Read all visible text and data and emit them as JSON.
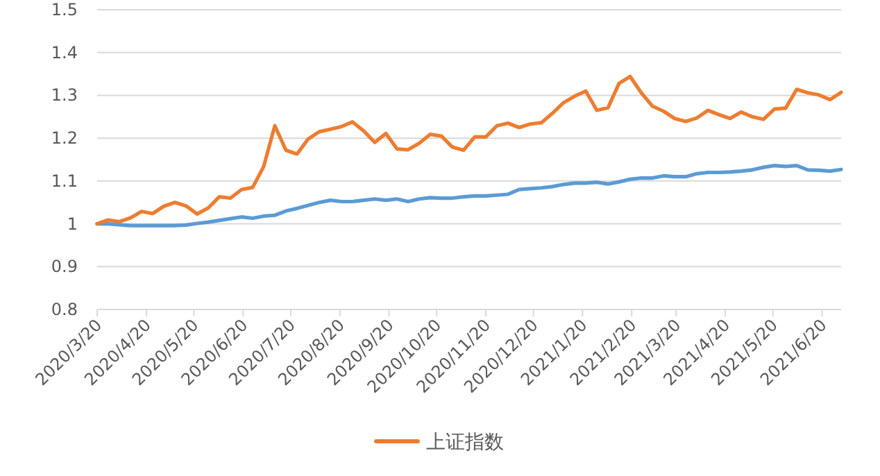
{
  "chart_data": {
    "type": "line",
    "x": [
      "2020-03-20",
      "2020-03-27",
      "2020-04-03",
      "2020-04-10",
      "2020-04-17",
      "2020-04-24",
      "2020-05-01",
      "2020-05-08",
      "2020-05-15",
      "2020-05-22",
      "2020-05-29",
      "2020-06-05",
      "2020-06-12",
      "2020-06-19",
      "2020-06-26",
      "2020-07-03",
      "2020-07-10",
      "2020-07-17",
      "2020-07-24",
      "2020-07-31",
      "2020-08-07",
      "2020-08-14",
      "2020-08-21",
      "2020-08-28",
      "2020-09-04",
      "2020-09-11",
      "2020-09-18",
      "2020-09-25",
      "2020-10-02",
      "2020-10-09",
      "2020-10-16",
      "2020-10-23",
      "2020-10-30",
      "2020-11-06",
      "2020-11-13",
      "2020-11-20",
      "2020-11-27",
      "2020-12-04",
      "2020-12-11",
      "2020-12-18",
      "2020-12-25",
      "2021-01-01",
      "2021-01-08",
      "2021-01-15",
      "2021-01-22",
      "2021-01-29",
      "2021-02-05",
      "2021-02-12",
      "2021-02-19",
      "2021-02-26",
      "2021-03-05",
      "2021-03-12",
      "2021-03-19",
      "2021-03-26",
      "2021-04-02",
      "2021-04-09",
      "2021-04-16",
      "2021-04-23",
      "2021-04-30",
      "2021-05-07",
      "2021-05-14",
      "2021-05-21",
      "2021-05-28",
      "2021-06-04",
      "2021-06-11",
      "2021-06-18",
      "2021-06-25",
      "2021-07-02"
    ],
    "series": [
      {
        "color": "#5b9bd5",
        "values": [
          1.0,
          1.0,
          0.998,
          0.996,
          0.996,
          0.996,
          0.996,
          0.996,
          0.997,
          1.001,
          1.004,
          1.008,
          1.012,
          1.016,
          1.013,
          1.018,
          1.02,
          1.03,
          1.036,
          1.043,
          1.05,
          1.055,
          1.052,
          1.052,
          1.055,
          1.058,
          1.055,
          1.058,
          1.052,
          1.058,
          1.061,
          1.06,
          1.06,
          1.063,
          1.065,
          1.065,
          1.067,
          1.069,
          1.08,
          1.082,
          1.084,
          1.087,
          1.092,
          1.095,
          1.095,
          1.097,
          1.093,
          1.098,
          1.104,
          1.107,
          1.107,
          1.112,
          1.11,
          1.11,
          1.117,
          1.12,
          1.12,
          1.121,
          1.123,
          1.126,
          1.132,
          1.136,
          1.134,
          1.136,
          1.126,
          1.125,
          1.123,
          1.127
        ]
      },
      {
        "name": "上证指数",
        "color": "#ed7d31",
        "values": [
          1.0,
          1.009,
          1.005,
          1.014,
          1.029,
          1.024,
          1.041,
          1.05,
          1.042,
          1.023,
          1.037,
          1.063,
          1.06,
          1.08,
          1.085,
          1.134,
          1.229,
          1.172,
          1.163,
          1.198,
          1.215,
          1.221,
          1.227,
          1.238,
          1.217,
          1.19,
          1.211,
          1.175,
          1.173,
          1.188,
          1.209,
          1.205,
          1.179,
          1.172,
          1.203,
          1.203,
          1.229,
          1.235,
          1.225,
          1.233,
          1.236,
          1.258,
          1.283,
          1.298,
          1.31,
          1.265,
          1.271,
          1.328,
          1.344,
          1.306,
          1.275,
          1.263,
          1.246,
          1.239,
          1.247,
          1.265,
          1.255,
          1.246,
          1.261,
          1.25,
          1.244,
          1.268,
          1.27,
          1.314,
          1.306,
          1.301,
          1.29,
          1.307
        ]
      }
    ],
    "xlim": [
      "2020-03-20",
      "2021-07-02"
    ],
    "xticks": [
      {
        "value": "2020-03-20",
        "label": "2020/3/20"
      },
      {
        "value": "2020-04-20",
        "label": "2020/4/20"
      },
      {
        "value": "2020-05-20",
        "label": "2020/5/20"
      },
      {
        "value": "2020-06-20",
        "label": "2020/6/20"
      },
      {
        "value": "2020-07-20",
        "label": "2020/7/20"
      },
      {
        "value": "2020-08-20",
        "label": "2020/8/20"
      },
      {
        "value": "2020-09-20",
        "label": "2020/9/20"
      },
      {
        "value": "2020-10-20",
        "label": "2020/10/20"
      },
      {
        "value": "2020-11-20",
        "label": "2020/11/20"
      },
      {
        "value": "2020-12-20",
        "label": "2020/12/20"
      },
      {
        "value": "2021-01-20",
        "label": "2021/1/20"
      },
      {
        "value": "2021-02-20",
        "label": "2021/2/20"
      },
      {
        "value": "2021-03-20",
        "label": "2021/3/20"
      },
      {
        "value": "2021-04-20",
        "label": "2021/4/20"
      },
      {
        "value": "2021-05-20",
        "label": "2021/5/20"
      },
      {
        "value": "2021-06-20",
        "label": "2021/6/20"
      }
    ],
    "ylim": [
      0.8,
      1.5
    ],
    "yticks": [
      0.8,
      0.9,
      1,
      1.1,
      1.2,
      1.3,
      1.4,
      1.5
    ],
    "grid": "y",
    "legend": "bottom",
    "marker": "none",
    "line_style": "solid"
  }
}
